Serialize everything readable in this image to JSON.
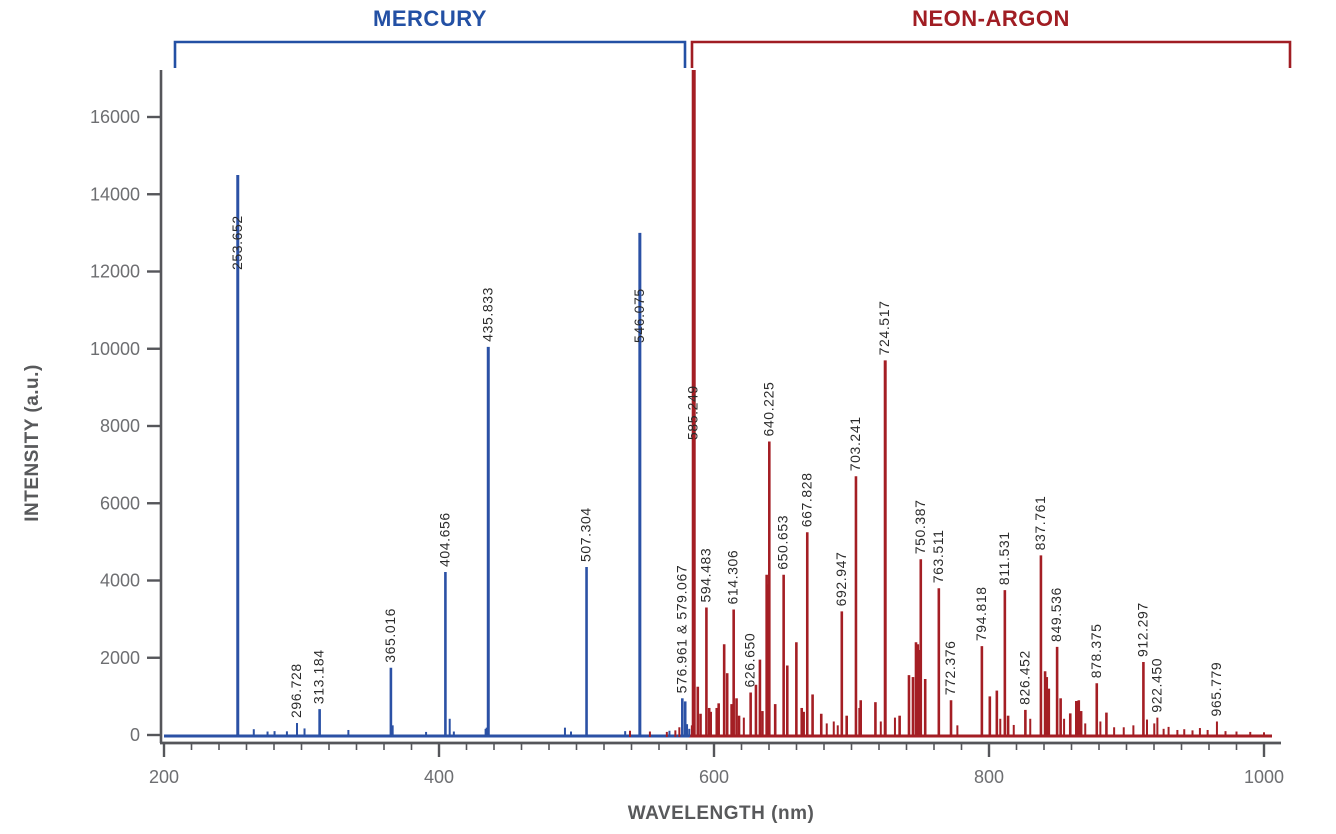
{
  "chart_data": {
    "type": "bar",
    "subtype": "emission-spectrum-stem-plot",
    "xlabel": "WAVELENGTH (nm)",
    "ylabel": "INTENSITY (a.u.)",
    "xlim": [
      200,
      1010
    ],
    "ylim": [
      0,
      17500
    ],
    "xticks": [
      200,
      400,
      600,
      800,
      1000
    ],
    "x_minor_tick_step": 20,
    "yticks": [
      0,
      2000,
      4000,
      6000,
      8000,
      10000,
      12000,
      14000,
      16000
    ],
    "grid": false,
    "annotations": [
      {
        "name": "mercury",
        "label": "MERCURY",
        "color": "#2350a4",
        "x1": 175,
        "x2": 685
      },
      {
        "name": "neon-argon",
        "label": "NEON-ARGON",
        "color": "#a01d23",
        "x1": 692,
        "x2": 1290
      }
    ],
    "series": [
      {
        "name": "MERCURY",
        "slug": "mercury",
        "color": "#2b51a5",
        "wavelength_region_nm": [
          200,
          585
        ],
        "peaks": [
          {
            "wl": 253.652,
            "i": 14500,
            "label": "253.652",
            "lb": 270
          },
          {
            "wl": 265.3,
            "i": 150
          },
          {
            "wl": 275.3,
            "i": 90
          },
          {
            "wl": 280.4,
            "i": 100
          },
          {
            "wl": 289.4,
            "i": 95
          },
          {
            "wl": 296.728,
            "i": 310,
            "label": "296.728"
          },
          {
            "wl": 302.2,
            "i": 170
          },
          {
            "wl": 313.184,
            "i": 670,
            "label": "313.184"
          },
          {
            "wl": 334.1,
            "i": 130
          },
          {
            "wl": 365.016,
            "i": 1740,
            "label": "365.016"
          },
          {
            "wl": 366.3,
            "i": 250
          },
          {
            "wl": 390.6,
            "i": 80
          },
          {
            "wl": 404.656,
            "i": 4220,
            "label": "404.656"
          },
          {
            "wl": 407.783,
            "i": 420
          },
          {
            "wl": 410.8,
            "i": 90
          },
          {
            "wl": 433.9,
            "i": 160
          },
          {
            "wl": 434.7,
            "i": 190
          },
          {
            "wl": 435.833,
            "i": 10050,
            "label": "435.833"
          },
          {
            "wl": 491.607,
            "i": 190
          },
          {
            "wl": 496.0,
            "i": 90
          },
          {
            "wl": 507.304,
            "i": 4350,
            "label": "507.304"
          },
          {
            "wl": 535.4,
            "i": 100
          },
          {
            "wl": 546.075,
            "i": 13000,
            "label": "546.075",
            "lb": 343
          },
          {
            "wl": 567.6,
            "i": 110
          },
          {
            "wl": 576.961,
            "i": 950,
            "label": "576.961 & 579.067"
          },
          {
            "wl": 579.067,
            "i": 870
          },
          {
            "wl": 580.4,
            "i": 280
          },
          {
            "wl": 582.0,
            "i": 160
          }
        ]
      },
      {
        "name": "NEON-ARGON",
        "slug": "neon-argon",
        "color": "#a41e24",
        "wavelength_region_nm": [
          585,
          1010
        ],
        "peaks": [
          {
            "wl": 538.9,
            "i": 110
          },
          {
            "wl": 553.4,
            "i": 90
          },
          {
            "wl": 565.7,
            "i": 80
          },
          {
            "wl": 571.9,
            "i": 120
          },
          {
            "wl": 574.8,
            "i": 200
          },
          {
            "wl": 583.9,
            "i": 250
          },
          {
            "wl": 585.249,
            "i": 17400,
            "label": "585.249",
            "clip": true,
            "lb": 440
          },
          {
            "wl": 588.2,
            "i": 1250
          },
          {
            "wl": 590.2,
            "i": 550
          },
          {
            "wl": 594.483,
            "i": 3300,
            "label": "594.483"
          },
          {
            "wl": 596.5,
            "i": 700
          },
          {
            "wl": 597.6,
            "i": 600
          },
          {
            "wl": 602.0,
            "i": 700
          },
          {
            "wl": 603.4,
            "i": 820
          },
          {
            "wl": 607.4,
            "i": 2350
          },
          {
            "wl": 609.6,
            "i": 1600
          },
          {
            "wl": 612.8,
            "i": 800
          },
          {
            "wl": 614.306,
            "i": 3250,
            "label": "614.306"
          },
          {
            "wl": 616.4,
            "i": 950
          },
          {
            "wl": 618.2,
            "i": 500
          },
          {
            "wl": 621.7,
            "i": 450
          },
          {
            "wl": 626.65,
            "i": 1100,
            "label": "626.650"
          },
          {
            "wl": 630.5,
            "i": 1300
          },
          {
            "wl": 633.4,
            "i": 1950
          },
          {
            "wl": 635.2,
            "i": 620
          },
          {
            "wl": 638.3,
            "i": 4150
          },
          {
            "wl": 639.2,
            "i": 3900
          },
          {
            "wl": 640.225,
            "i": 7600,
            "label": "640.225"
          },
          {
            "wl": 644.5,
            "i": 800
          },
          {
            "wl": 650.653,
            "i": 4150,
            "label": "650.653"
          },
          {
            "wl": 653.3,
            "i": 1800
          },
          {
            "wl": 659.9,
            "i": 2400
          },
          {
            "wl": 663.8,
            "i": 700
          },
          {
            "wl": 665.2,
            "i": 600
          },
          {
            "wl": 667.828,
            "i": 5250,
            "label": "667.828"
          },
          {
            "wl": 671.7,
            "i": 1050
          },
          {
            "wl": 678.0,
            "i": 550
          },
          {
            "wl": 682.0,
            "i": 300
          },
          {
            "wl": 687.1,
            "i": 350
          },
          {
            "wl": 690.0,
            "i": 250
          },
          {
            "wl": 692.947,
            "i": 3200,
            "label": "692.947"
          },
          {
            "wl": 696.5,
            "i": 500
          },
          {
            "wl": 703.241,
            "i": 6700,
            "label": "703.241"
          },
          {
            "wl": 705.9,
            "i": 700
          },
          {
            "wl": 706.7,
            "i": 900
          },
          {
            "wl": 717.4,
            "i": 850
          },
          {
            "wl": 721.3,
            "i": 350
          },
          {
            "wl": 724.517,
            "i": 9700,
            "label": "724.517"
          },
          {
            "wl": 731.6,
            "i": 450
          },
          {
            "wl": 735.0,
            "i": 500
          },
          {
            "wl": 741.8,
            "i": 1550
          },
          {
            "wl": 744.7,
            "i": 1500
          },
          {
            "wl": 746.9,
            "i": 2400
          },
          {
            "wl": 748.2,
            "i": 2350
          },
          {
            "wl": 749.1,
            "i": 2200
          },
          {
            "wl": 750.387,
            "i": 4550,
            "label": "750.387"
          },
          {
            "wl": 753.6,
            "i": 1450
          },
          {
            "wl": 763.511,
            "i": 3800,
            "label": "763.511"
          },
          {
            "wl": 772.376,
            "i": 900,
            "label": "772.376"
          },
          {
            "wl": 777.0,
            "i": 250
          },
          {
            "wl": 794.818,
            "i": 2300,
            "label": "794.818"
          },
          {
            "wl": 800.6,
            "i": 1000
          },
          {
            "wl": 805.7,
            "i": 1150
          },
          {
            "wl": 808.2,
            "i": 420
          },
          {
            "wl": 811.531,
            "i": 3750,
            "label": "811.531"
          },
          {
            "wl": 813.9,
            "i": 500
          },
          {
            "wl": 818.0,
            "i": 260
          },
          {
            "wl": 826.452,
            "i": 650,
            "label": "826.452"
          },
          {
            "wl": 830.0,
            "i": 420
          },
          {
            "wl": 837.761,
            "i": 4650,
            "label": "837.761"
          },
          {
            "wl": 840.8,
            "i": 1650
          },
          {
            "wl": 842.0,
            "i": 1500
          },
          {
            "wl": 843.5,
            "i": 1200
          },
          {
            "wl": 849.536,
            "i": 2280,
            "label": "849.536"
          },
          {
            "wl": 852.1,
            "i": 950
          },
          {
            "wl": 854.6,
            "i": 420
          },
          {
            "wl": 859.1,
            "i": 560
          },
          {
            "wl": 863.5,
            "i": 880
          },
          {
            "wl": 865.3,
            "i": 900
          },
          {
            "wl": 867.0,
            "i": 620
          },
          {
            "wl": 870.0,
            "i": 300
          },
          {
            "wl": 878.375,
            "i": 1340,
            "label": "878.375"
          },
          {
            "wl": 881.0,
            "i": 350
          },
          {
            "wl": 885.4,
            "i": 580
          },
          {
            "wl": 891.0,
            "i": 200
          },
          {
            "wl": 898.0,
            "i": 200
          },
          {
            "wl": 905.0,
            "i": 250
          },
          {
            "wl": 912.297,
            "i": 1890,
            "label": "912.297"
          },
          {
            "wl": 914.9,
            "i": 400
          },
          {
            "wl": 920.2,
            "i": 300
          },
          {
            "wl": 922.45,
            "i": 450,
            "label": "922.450"
          },
          {
            "wl": 927.0,
            "i": 160
          },
          {
            "wl": 930.6,
            "i": 210
          },
          {
            "wl": 937.0,
            "i": 130
          },
          {
            "wl": 942.0,
            "i": 150
          },
          {
            "wl": 948.0,
            "i": 120
          },
          {
            "wl": 953.4,
            "i": 180
          },
          {
            "wl": 959.0,
            "i": 130
          },
          {
            "wl": 965.779,
            "i": 350,
            "label": "965.779"
          },
          {
            "wl": 972.0,
            "i": 100
          },
          {
            "wl": 980.0,
            "i": 90
          },
          {
            "wl": 990.0,
            "i": 80
          },
          {
            "wl": 1000.0,
            "i": 70
          }
        ]
      }
    ]
  },
  "style": {
    "axis_color": "#55565a",
    "tick_label_color": "#6d6e71",
    "peak_label_color": "#2b2b2b",
    "background": "#ffffff"
  }
}
